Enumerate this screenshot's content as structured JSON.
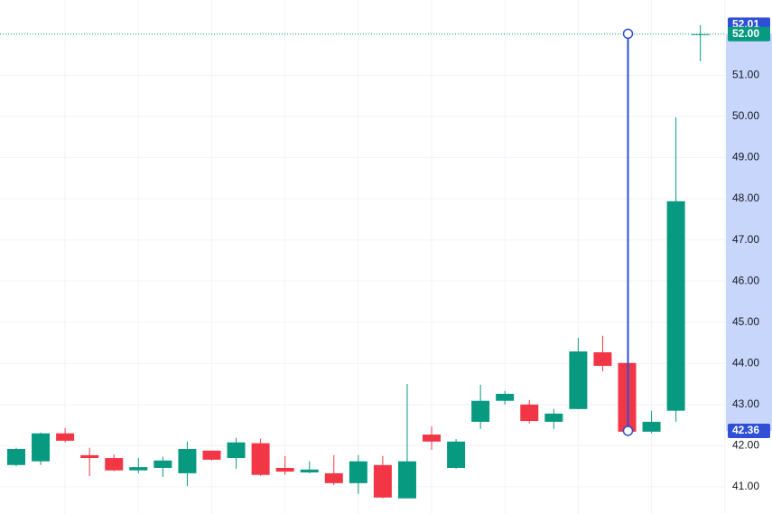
{
  "chart_data": {
    "type": "candlestick",
    "open": [
      41.53,
      41.62,
      42.3,
      41.77,
      41.7,
      41.4,
      41.46,
      41.33,
      41.88,
      41.7,
      42.06,
      41.46,
      41.35,
      41.33,
      41.09,
      41.53,
      40.72,
      42.27,
      41.46,
      42.58,
      43.09,
      43.0,
      42.58,
      42.89,
      44.27,
      44.01,
      42.34,
      42.85,
      52.0
    ],
    "high": [
      41.95,
      42.32,
      42.43,
      41.95,
      41.79,
      41.7,
      41.73,
      42.1,
      41.88,
      42.19,
      42.17,
      41.75,
      41.62,
      41.77,
      41.77,
      41.75,
      43.5,
      42.47,
      42.16,
      43.48,
      43.33,
      43.11,
      42.89,
      44.62,
      44.67,
      44.01,
      42.85,
      49.98,
      52.22
    ],
    "low": [
      41.5,
      41.53,
      42.08,
      41.26,
      41.38,
      41.33,
      41.24,
      41.02,
      41.64,
      41.44,
      41.27,
      41.29,
      41.33,
      41.04,
      40.83,
      40.72,
      40.72,
      41.9,
      41.44,
      42.41,
      43.0,
      42.54,
      42.41,
      42.89,
      43.81,
      42.34,
      42.3,
      42.58,
      51.34
    ],
    "close": [
      41.92,
      42.3,
      42.12,
      41.7,
      41.4,
      41.48,
      41.64,
      41.92,
      41.66,
      42.08,
      41.29,
      41.37,
      41.42,
      41.09,
      41.62,
      40.74,
      41.62,
      42.1,
      42.1,
      43.09,
      43.26,
      42.6,
      42.78,
      44.29,
      43.94,
      42.34,
      42.58,
      47.94,
      52.0
    ],
    "up_color": "#089981",
    "down_color": "#f23645",
    "ylim": [
      40.34,
      52.83
    ],
    "yticks": [
      {
        "value": 41,
        "label": "41.00"
      },
      {
        "value": 42,
        "label": "42.00"
      },
      {
        "value": 43,
        "label": "43.00"
      },
      {
        "value": 44,
        "label": "44.00"
      },
      {
        "value": 45,
        "label": "45.00"
      },
      {
        "value": 46,
        "label": "46.00"
      },
      {
        "value": 47,
        "label": "47.00"
      },
      {
        "value": 48,
        "label": "48.00"
      },
      {
        "value": 49,
        "label": "49.00"
      },
      {
        "value": 50,
        "label": "50.00"
      },
      {
        "value": 51,
        "label": "51.00"
      }
    ],
    "grid": true,
    "last_price": {
      "value": 52,
      "label": "52.00"
    },
    "measure": {
      "from": 42.36,
      "to": 52.01,
      "color": "#2e4fd6"
    }
  }
}
